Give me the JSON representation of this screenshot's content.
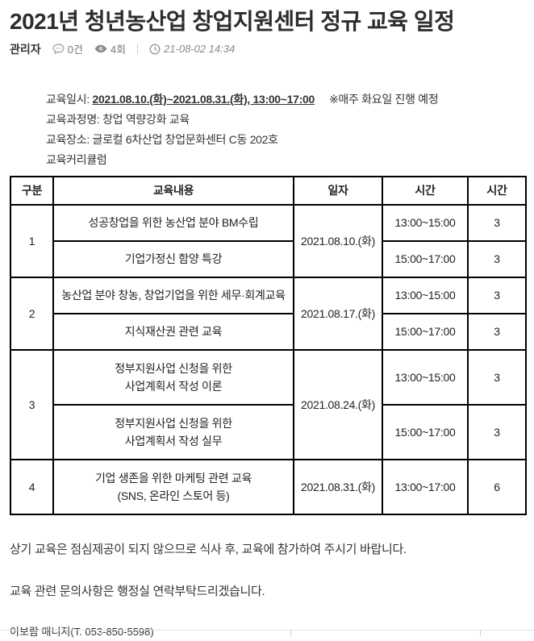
{
  "header": {
    "title": "2021년 청년농산업 창업지원센터 정규 교육 일정",
    "author": "관리자",
    "comments_label": "0건",
    "views_label": "4회",
    "datetime": "21-08-02 14:34"
  },
  "info": {
    "schedule_label": "교육일시: ",
    "schedule_value": "2021.08.10.(화)~2021.08.31.(화), 13:00~17:00",
    "schedule_note": "※매주 화요일 진행 예정",
    "course_line": "교육과정명: 창업 역량강화 교육",
    "place_line": "교육장소: 글로컬 6차산업 창업문화센터 C동 202호",
    "curriculum_line": "교육커리큘럼"
  },
  "table": {
    "headers": [
      "구분",
      "교육내용",
      "일자",
      "시간",
      "시간"
    ],
    "groups": [
      {
        "no": "1",
        "date": "2021.08.10.(화)",
        "sessions": [
          {
            "content": [
              "성공창업을 위한 농산업 분야 BM수립"
            ],
            "time": "13:00~15:00",
            "hours": "3"
          },
          {
            "content": [
              "기업가정신 함양 특강"
            ],
            "time": "15:00~17:00",
            "hours": "3"
          }
        ]
      },
      {
        "no": "2",
        "date": "2021.08.17.(화)",
        "sessions": [
          {
            "content": [
              "농산업 분야 창농, 창업기업을 위한 세무·회계교육"
            ],
            "time": "13:00~15:00",
            "hours": "3"
          },
          {
            "content": [
              "지식재산권 관련 교육"
            ],
            "time": "15:00~17:00",
            "hours": "3"
          }
        ]
      },
      {
        "no": "3",
        "date": "2021.08.24.(화)",
        "sessions": [
          {
            "content": [
              "정부지원사업 신청을 위한",
              "사업계획서 작성 이론"
            ],
            "time": "13:00~15:00",
            "hours": "3"
          },
          {
            "content": [
              "정부지원사업 신청을 위한",
              "사업계획서 작성 실무"
            ],
            "time": "15:00~17:00",
            "hours": "3"
          }
        ]
      },
      {
        "no": "4",
        "date": "2021.08.31.(화)",
        "sessions": [
          {
            "content": [
              "기업 생존을 위한 마케팅 관련 교육",
              "(SNS, 온라인 스토어 등)"
            ],
            "time": "13:00~17:00",
            "hours": "6"
          }
        ]
      }
    ]
  },
  "footer": {
    "notice1": "상기 교육은 점심제공이 되지 않으므로 식사 후, 교육에 참가하여 주시기 바랍니다.",
    "notice2": "교육 관련 문의사항은 행정실 연락부탁드리겠습니다.",
    "contact": "이보람 매니저(T. 053-850-5598)"
  },
  "colors": {
    "text": "#333333",
    "meta": "#777777",
    "table_border": "#000000",
    "divider": "#e2e2e2"
  }
}
